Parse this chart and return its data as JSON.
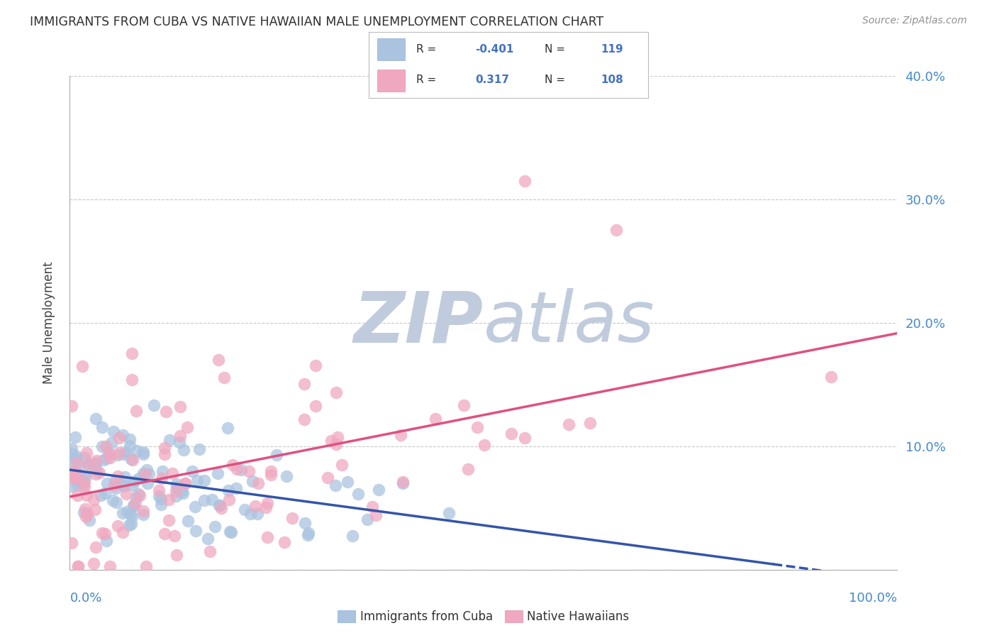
{
  "title": "IMMIGRANTS FROM CUBA VS NATIVE HAWAIIAN MALE UNEMPLOYMENT CORRELATION CHART",
  "source": "Source: ZipAtlas.com",
  "ylabel": "Male Unemployment",
  "blue_R": -0.401,
  "blue_N": 119,
  "pink_R": 0.317,
  "pink_N": 108,
  "blue_label": "Immigrants from Cuba",
  "pink_label": "Native Hawaiians",
  "background_color": "#ffffff",
  "grid_color": "#c8c8c8",
  "blue_color": "#aac4e0",
  "pink_color": "#f0a8c0",
  "blue_line_color": "#3355aa",
  "pink_line_color": "#e05080",
  "title_color": "#303030",
  "source_color": "#909090",
  "watermark_color_zip": "#c0ccdd",
  "watermark_color_atlas": "#c0ccdd",
  "tick_label_color": "#4488cc",
  "axis_color": "#aaaaaa",
  "legend_R_color": "#303030",
  "legend_val_color": "#4472c4"
}
